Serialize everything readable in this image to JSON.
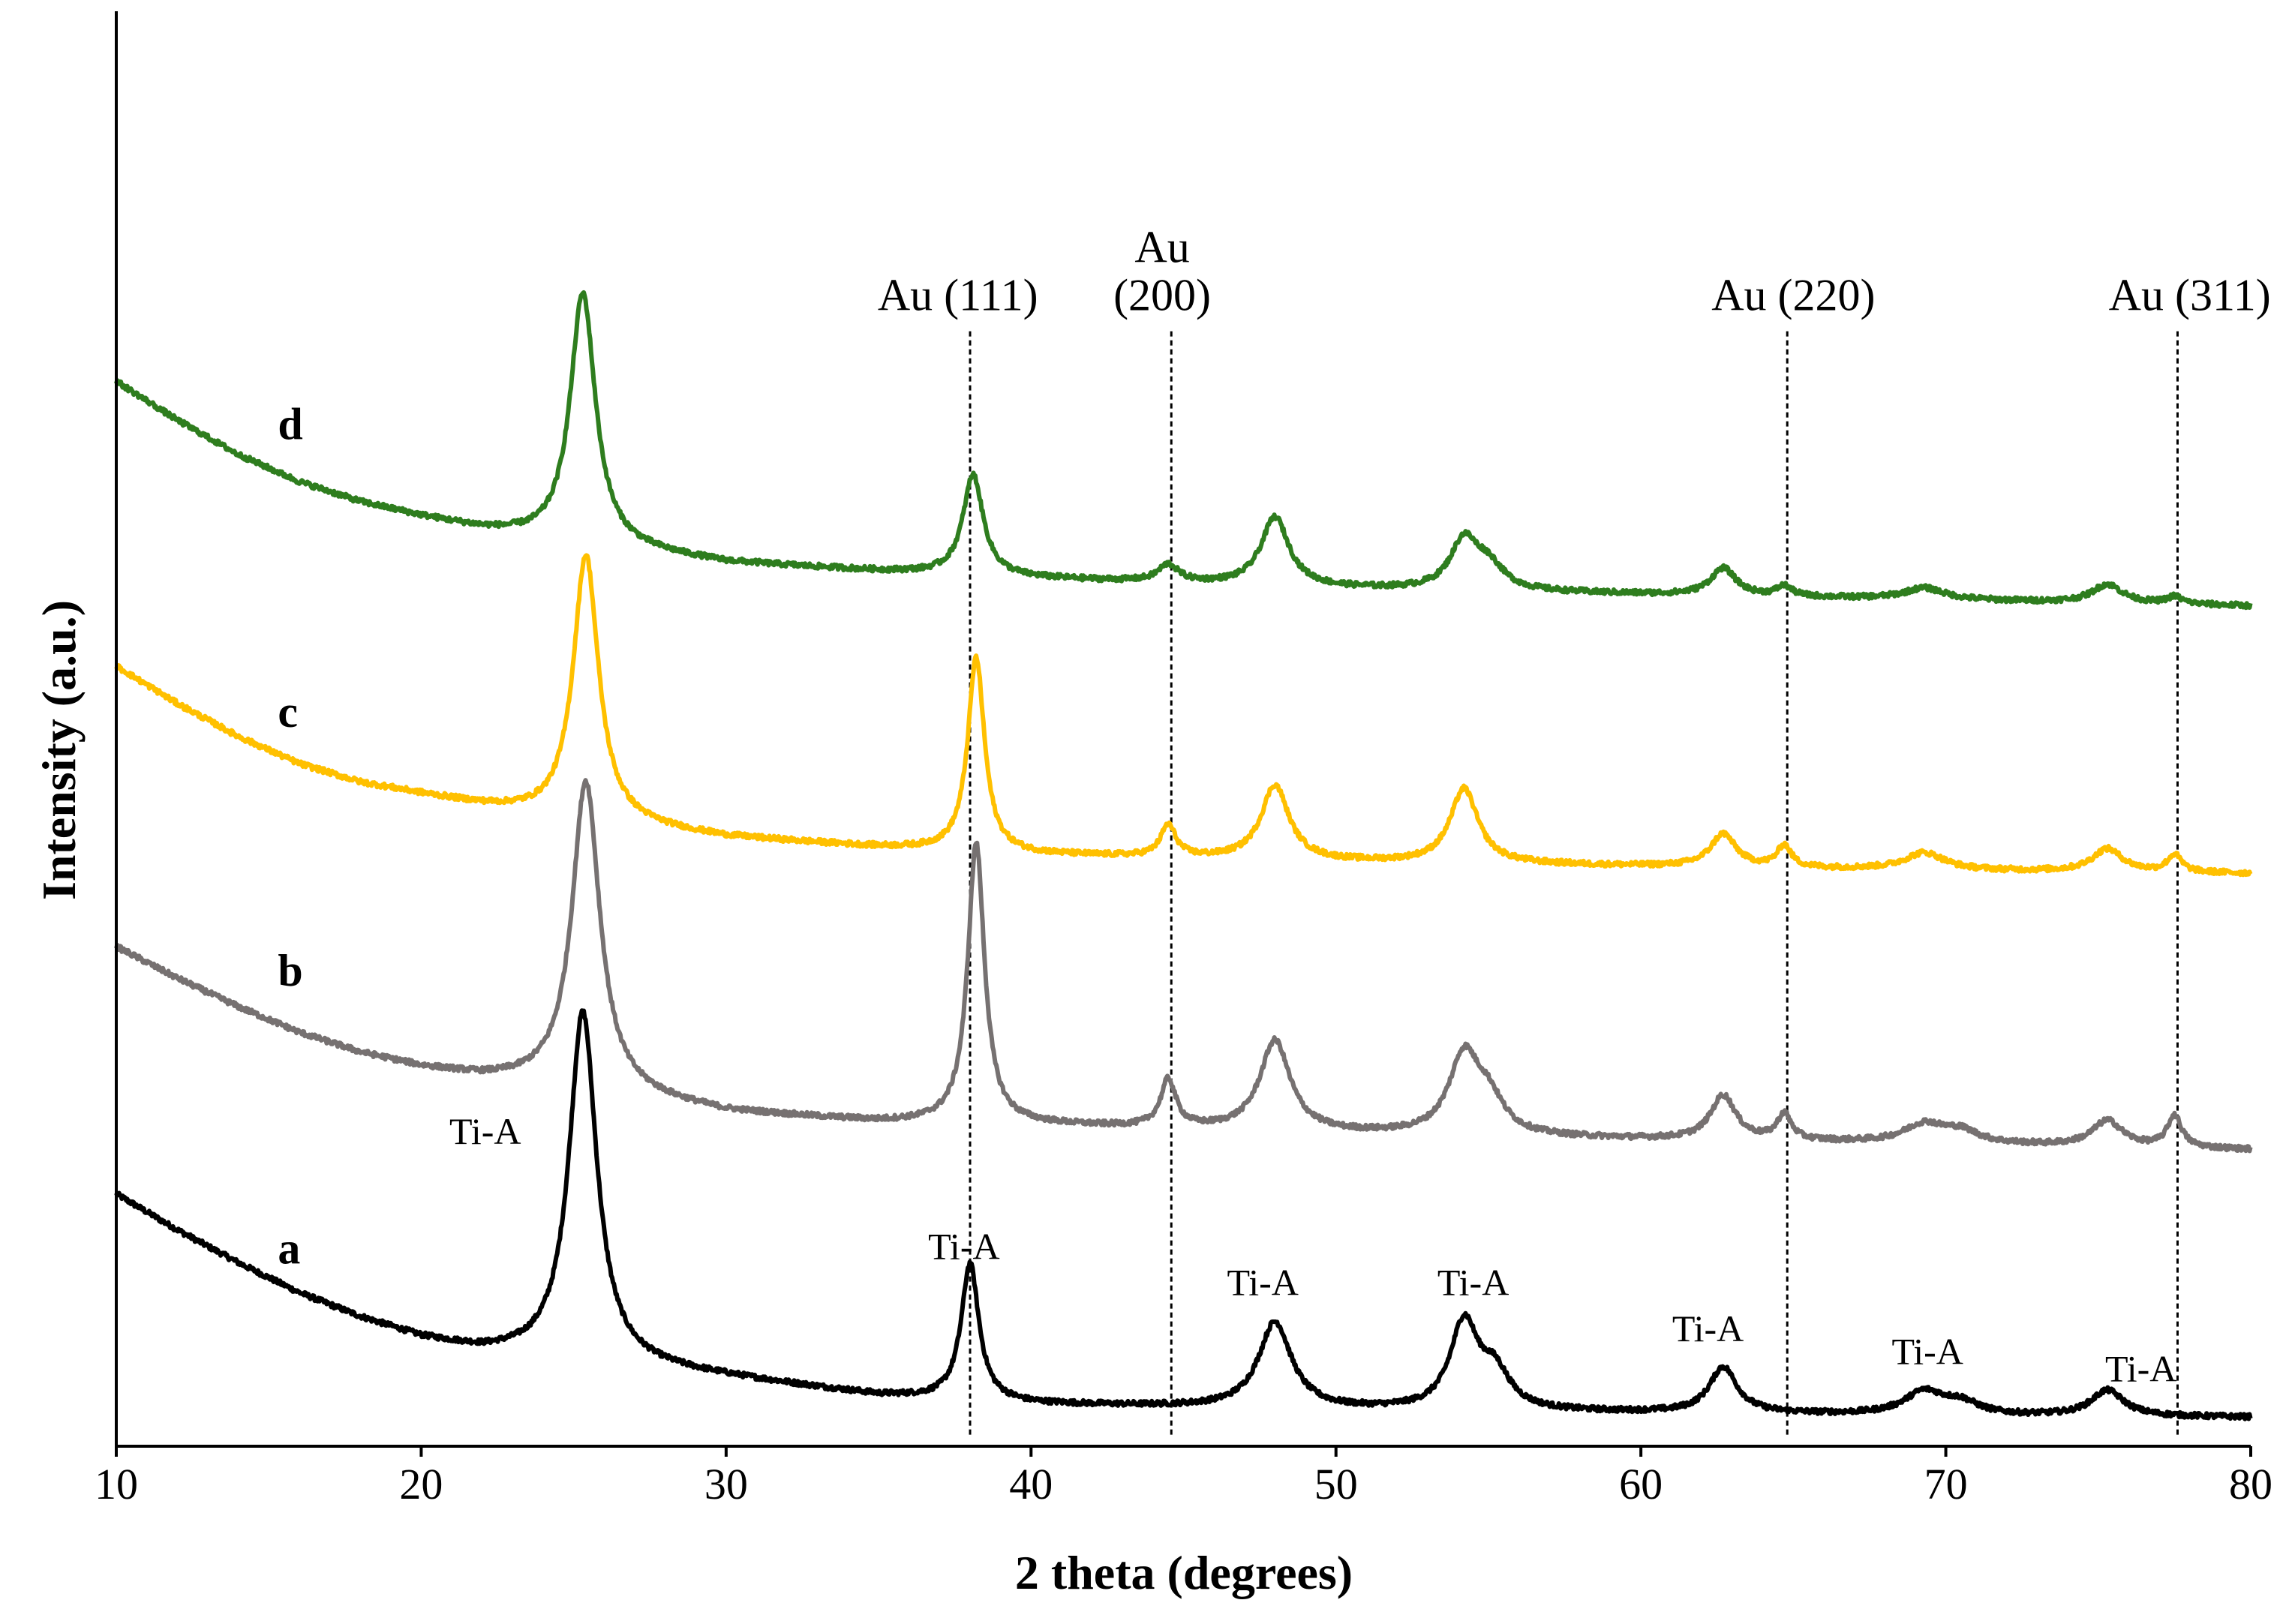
{
  "chart_data": {
    "type": "line",
    "title": "",
    "xlabel": "2 theta (degrees)",
    "ylabel": "Intensity (a.u.)",
    "xlim": [
      10,
      80
    ],
    "ylim": [
      0,
      100
    ],
    "x_ticks": [
      "10",
      "20",
      "30",
      "40",
      "50",
      "60",
      "70",
      "80"
    ],
    "grid": false,
    "colors": {
      "a": "#000000",
      "b": "#767171",
      "c": "#FFC000",
      "d": "#2E7D1E",
      "ref_line": "#000000"
    },
    "series": [
      {
        "name": "a",
        "label": "a",
        "label_pos": [
          15.3,
          12.7
        ],
        "background": [
          [
            10,
            17.5
          ],
          [
            12,
            15.0
          ],
          [
            14,
            12.7
          ],
          [
            16,
            10.6
          ],
          [
            18,
            8.9
          ],
          [
            20,
            7.5
          ],
          [
            22,
            6.6
          ],
          [
            24,
            6.2
          ],
          [
            30,
            4.8
          ],
          [
            35,
            3.5
          ],
          [
            40,
            2.9
          ],
          [
            50,
            2.5
          ],
          [
            60,
            2.3
          ],
          [
            70,
            2.1
          ],
          [
            80,
            2.0
          ]
        ],
        "peaks": [
          [
            25.3,
            24.3,
            0.55
          ],
          [
            38.0,
            9.5,
            0.35
          ],
          [
            48.0,
            6.0,
            0.65
          ],
          [
            54.2,
            6.0,
            0.55
          ],
          [
            55.2,
            2.5,
            0.6
          ],
          [
            62.7,
            3.2,
            0.55
          ],
          [
            69.3,
            1.6,
            0.8
          ],
          [
            70.5,
            0.8,
            0.7
          ],
          [
            75.3,
            1.8,
            0.65
          ]
        ]
      },
      {
        "name": "b",
        "label": "b",
        "label_pos": [
          15.3,
          32.0
        ],
        "background": [
          [
            10,
            34.7
          ],
          [
            12,
            32.5
          ],
          [
            14,
            30.5
          ],
          [
            16,
            28.7
          ],
          [
            18,
            27.3
          ],
          [
            20,
            26.3
          ],
          [
            22,
            25.6
          ],
          [
            24,
            25.2
          ],
          [
            30,
            23.2
          ],
          [
            35,
            22.5
          ],
          [
            40,
            22.3
          ],
          [
            50,
            21.7
          ],
          [
            60,
            21.3
          ],
          [
            70,
            21.0
          ],
          [
            80,
            20.6
          ]
        ],
        "peaks": [
          [
            25.4,
            21.5,
            0.55
          ],
          [
            38.2,
            19.5,
            0.33
          ],
          [
            44.5,
            3.3,
            0.3
          ],
          [
            48.0,
            6.3,
            0.6
          ],
          [
            54.2,
            5.4,
            0.6
          ],
          [
            55.0,
            2.2,
            0.6
          ],
          [
            62.7,
            3.1,
            0.5
          ],
          [
            64.7,
            1.8,
            0.28
          ],
          [
            69.3,
            1.3,
            0.8
          ],
          [
            70.5,
            0.8,
            0.7
          ],
          [
            75.3,
            1.8,
            0.6
          ],
          [
            77.5,
            2.2,
            0.28
          ]
        ]
      },
      {
        "name": "c",
        "label": "c",
        "label_pos": [
          15.3,
          50.0
        ],
        "background": [
          [
            10,
            54.2
          ],
          [
            12,
            51.6
          ],
          [
            14,
            49.3
          ],
          [
            16,
            47.4
          ],
          [
            18,
            46.1
          ],
          [
            20,
            45.3
          ],
          [
            22,
            44.5
          ],
          [
            24,
            43.8
          ],
          [
            30,
            42.3
          ],
          [
            35,
            41.6
          ],
          [
            40,
            41.1
          ],
          [
            50,
            40.6
          ],
          [
            60,
            40.3
          ],
          [
            70,
            40.0
          ],
          [
            80,
            39.8
          ]
        ],
        "peaks": [
          [
            25.4,
            18.5,
            0.5
          ],
          [
            38.2,
            13.5,
            0.33
          ],
          [
            44.5,
            2.2,
            0.3
          ],
          [
            48.0,
            5.2,
            0.55
          ],
          [
            54.2,
            5.2,
            0.55
          ],
          [
            62.7,
            2.3,
            0.5
          ],
          [
            64.7,
            1.5,
            0.28
          ],
          [
            69.3,
            1.2,
            0.8
          ],
          [
            75.3,
            1.6,
            0.6
          ],
          [
            77.5,
            1.2,
            0.28
          ]
        ]
      },
      {
        "name": "d",
        "label": "d",
        "label_pos": [
          15.3,
          70.0
        ],
        "background": [
          [
            10,
            74.0
          ],
          [
            12,
            71.3
          ],
          [
            14,
            68.9
          ],
          [
            16,
            67.0
          ],
          [
            18,
            65.6
          ],
          [
            20,
            64.6
          ],
          [
            22,
            63.7
          ],
          [
            24,
            63.0
          ],
          [
            30,
            61.4
          ],
          [
            35,
            60.8
          ],
          [
            40,
            60.3
          ],
          [
            50,
            59.6
          ],
          [
            60,
            59.2
          ],
          [
            70,
            58.8
          ],
          [
            80,
            58.4
          ]
        ],
        "peaks": [
          [
            25.3,
            17.5,
            0.5
          ],
          [
            38.1,
            7.0,
            0.4
          ],
          [
            44.5,
            1.2,
            0.4
          ],
          [
            48.0,
            4.8,
            0.55
          ],
          [
            54.2,
            3.4,
            0.55
          ],
          [
            55.0,
            1.6,
            0.6
          ],
          [
            62.7,
            1.9,
            0.5
          ],
          [
            64.7,
            0.7,
            0.3
          ],
          [
            69.3,
            0.8,
            0.8
          ],
          [
            75.3,
            1.3,
            0.6
          ],
          [
            77.5,
            0.5,
            0.3
          ]
        ]
      }
    ],
    "reference_lines": [
      {
        "label": "Au (111)",
        "label_lines": [
          "Au (111)"
        ],
        "x": 38.0,
        "y_bottom": 0.8,
        "y_top": 77.5,
        "label_x": 37.6
      },
      {
        "label": "Au (200)",
        "label_lines": [
          "Au",
          "(200)"
        ],
        "x": 44.6,
        "y_bottom": 0.8,
        "y_top": 77.5,
        "label_x": 44.3
      },
      {
        "label": "Au (220)",
        "label_lines": [
          "Au (220)"
        ],
        "x": 64.8,
        "y_bottom": 0.8,
        "y_top": 77.5,
        "label_x": 65.0
      },
      {
        "label": "Au (311)",
        "label_lines": [
          "Au (311)"
        ],
        "x": 77.6,
        "y_bottom": 0.8,
        "y_top": 77.5,
        "label_x": 78.0
      }
    ],
    "annotations": [
      {
        "text": "Ti-A",
        "x": 22.1,
        "y": 21.0
      },
      {
        "text": "Ti-A",
        "x": 37.8,
        "y": 13.0
      },
      {
        "text": "Ti-A",
        "x": 47.6,
        "y": 10.5
      },
      {
        "text": "Ti-A",
        "x": 54.5,
        "y": 10.5
      },
      {
        "text": "Ti-A",
        "x": 62.2,
        "y": 7.3
      },
      {
        "text": "Ti-A",
        "x": 69.4,
        "y": 5.7
      },
      {
        "text": "Ti-A",
        "x": 76.4,
        "y": 4.5
      }
    ]
  }
}
